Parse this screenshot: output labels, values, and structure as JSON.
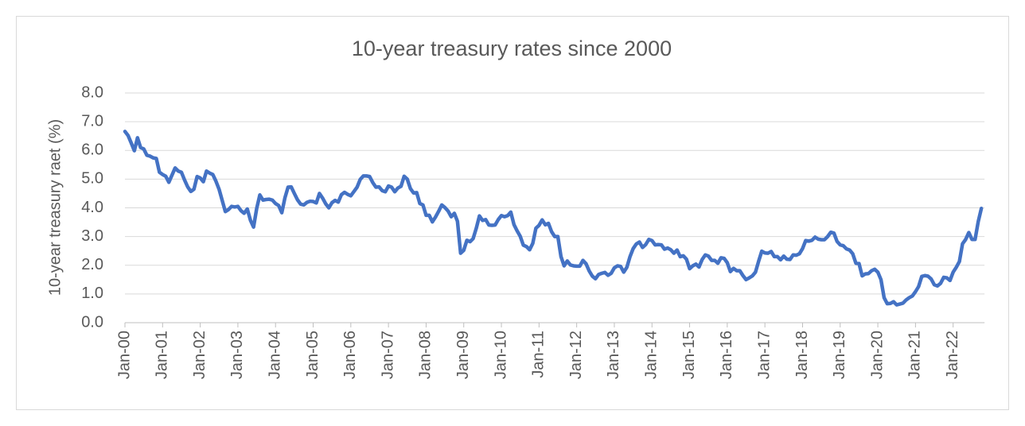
{
  "chart_data": {
    "type": "line",
    "title": "10-year treasury rates since 2000",
    "y_label": "10-year treasury raet (%)",
    "color": "#4472c4",
    "grid": true,
    "ylim": [
      0,
      8
    ],
    "yticks": [
      {
        "value": 0,
        "label": "0.0"
      },
      {
        "value": 1,
        "label": "1.0"
      },
      {
        "value": 2,
        "label": "2.0"
      },
      {
        "value": 3,
        "label": "3.0"
      },
      {
        "value": 4,
        "label": "4.0"
      },
      {
        "value": 5,
        "label": "5.0"
      },
      {
        "value": 6,
        "label": "6.0"
      },
      {
        "value": 7,
        "label": "7.0"
      },
      {
        "value": 8,
        "label": "8.0"
      }
    ],
    "categories": [
      "Jan-00",
      null,
      null,
      null,
      null,
      null,
      null,
      null,
      null,
      null,
      null,
      null,
      "Jan-01",
      null,
      null,
      null,
      null,
      null,
      null,
      null,
      null,
      null,
      null,
      null,
      "Jan-02",
      null,
      null,
      null,
      null,
      null,
      null,
      null,
      null,
      null,
      null,
      null,
      "Jan-03",
      null,
      null,
      null,
      null,
      null,
      null,
      null,
      null,
      null,
      null,
      null,
      "Jan-04",
      null,
      null,
      null,
      null,
      null,
      null,
      null,
      null,
      null,
      null,
      null,
      "Jan-05",
      null,
      null,
      null,
      null,
      null,
      null,
      null,
      null,
      null,
      null,
      null,
      "Jan-06",
      null,
      null,
      null,
      null,
      null,
      null,
      null,
      null,
      null,
      null,
      null,
      "Jan-07",
      null,
      null,
      null,
      null,
      null,
      null,
      null,
      null,
      null,
      null,
      null,
      "Jan-08",
      null,
      null,
      null,
      null,
      null,
      null,
      null,
      null,
      null,
      null,
      null,
      "Jan-09",
      null,
      null,
      null,
      null,
      null,
      null,
      null,
      null,
      null,
      null,
      null,
      "Jan-10",
      null,
      null,
      null,
      null,
      null,
      null,
      null,
      null,
      null,
      null,
      null,
      "Jan-11",
      null,
      null,
      null,
      null,
      null,
      null,
      null,
      null,
      null,
      null,
      null,
      "Jan-12",
      null,
      null,
      null,
      null,
      null,
      null,
      null,
      null,
      null,
      null,
      null,
      "Jan-13",
      null,
      null,
      null,
      null,
      null,
      null,
      null,
      null,
      null,
      null,
      null,
      "Jan-14",
      null,
      null,
      null,
      null,
      null,
      null,
      null,
      null,
      null,
      null,
      null,
      "Jan-15",
      null,
      null,
      null,
      null,
      null,
      null,
      null,
      null,
      null,
      null,
      null,
      "Jan-16",
      null,
      null,
      null,
      null,
      null,
      null,
      null,
      null,
      null,
      null,
      null,
      "Jan-17",
      null,
      null,
      null,
      null,
      null,
      null,
      null,
      null,
      null,
      null,
      null,
      "Jan-18",
      null,
      null,
      null,
      null,
      null,
      null,
      null,
      null,
      null,
      null,
      null,
      "Jan-19",
      null,
      null,
      null,
      null,
      null,
      null,
      null,
      null,
      null,
      null,
      null,
      "Jan-20",
      null,
      null,
      null,
      null,
      null,
      null,
      null,
      null,
      null,
      null,
      null,
      "Jan-21",
      null,
      null,
      null,
      null,
      null,
      null,
      null,
      null,
      null,
      null,
      null,
      "Jan-22",
      null,
      null,
      null,
      null,
      null,
      null,
      null,
      null,
      null
    ],
    "values": [
      6.66,
      6.52,
      6.26,
      5.99,
      6.44,
      6.1,
      6.05,
      5.83,
      5.8,
      5.74,
      5.72,
      5.24,
      5.16,
      5.1,
      4.89,
      5.14,
      5.39,
      5.28,
      5.24,
      4.97,
      4.73,
      4.57,
      4.65,
      5.09,
      5.04,
      4.91,
      5.28,
      5.21,
      5.16,
      4.93,
      4.65,
      4.26,
      3.87,
      3.94,
      4.05,
      4.03,
      4.05,
      3.9,
      3.81,
      3.96,
      3.57,
      3.33,
      3.98,
      4.45,
      4.27,
      4.29,
      4.3,
      4.27,
      4.15,
      4.08,
      3.83,
      4.35,
      4.72,
      4.73,
      4.5,
      4.28,
      4.13,
      4.1,
      4.19,
      4.23,
      4.22,
      4.17,
      4.5,
      4.34,
      4.14,
      4.0,
      4.18,
      4.26,
      4.2,
      4.46,
      4.54,
      4.47,
      4.42,
      4.57,
      4.72,
      4.99,
      5.11,
      5.11,
      5.09,
      4.88,
      4.72,
      4.73,
      4.6,
      4.56,
      4.76,
      4.72,
      4.56,
      4.69,
      4.75,
      5.1,
      5.0,
      4.67,
      4.52,
      4.53,
      4.15,
      4.1,
      3.74,
      3.74,
      3.51,
      3.68,
      3.88,
      4.1,
      4.01,
      3.89,
      3.69,
      3.81,
      3.53,
      2.42,
      2.52,
      2.87,
      2.82,
      2.93,
      3.29,
      3.72,
      3.56,
      3.59,
      3.4,
      3.39,
      3.4,
      3.59,
      3.73,
      3.69,
      3.73,
      3.85,
      3.42,
      3.2,
      3.01,
      2.7,
      2.65,
      2.54,
      2.76,
      3.29,
      3.39,
      3.58,
      3.41,
      3.46,
      3.17,
      3.0,
      3.0,
      2.3,
      1.98,
      2.15,
      2.01,
      1.98,
      1.97,
      1.97,
      2.17,
      2.05,
      1.8,
      1.62,
      1.53,
      1.68,
      1.72,
      1.75,
      1.65,
      1.72,
      1.91,
      1.98,
      1.96,
      1.76,
      1.93,
      2.3,
      2.58,
      2.74,
      2.81,
      2.62,
      2.72,
      2.9,
      2.86,
      2.71,
      2.72,
      2.71,
      2.56,
      2.6,
      2.54,
      2.42,
      2.53,
      2.3,
      2.33,
      2.21,
      1.88,
      1.98,
      2.04,
      1.94,
      2.2,
      2.36,
      2.32,
      2.17,
      2.17,
      2.07,
      2.26,
      2.24,
      2.09,
      1.78,
      1.89,
      1.81,
      1.81,
      1.64,
      1.5,
      1.56,
      1.63,
      1.76,
      2.14,
      2.49,
      2.43,
      2.42,
      2.48,
      2.3,
      2.3,
      2.19,
      2.32,
      2.21,
      2.2,
      2.36,
      2.35,
      2.4,
      2.58,
      2.86,
      2.84,
      2.87,
      2.98,
      2.91,
      2.89,
      2.89,
      3.0,
      3.15,
      3.12,
      2.83,
      2.71,
      2.68,
      2.57,
      2.53,
      2.4,
      2.07,
      2.06,
      1.63,
      1.7,
      1.71,
      1.81,
      1.86,
      1.76,
      1.5,
      0.87,
      0.66,
      0.67,
      0.73,
      0.62,
      0.65,
      0.68,
      0.79,
      0.87,
      0.93,
      1.08,
      1.26,
      1.61,
      1.64,
      1.62,
      1.52,
      1.32,
      1.28,
      1.37,
      1.58,
      1.56,
      1.47,
      1.76,
      1.93,
      2.13,
      2.75,
      2.9,
      3.14,
      2.9,
      2.9,
      3.52,
      3.98
    ]
  }
}
